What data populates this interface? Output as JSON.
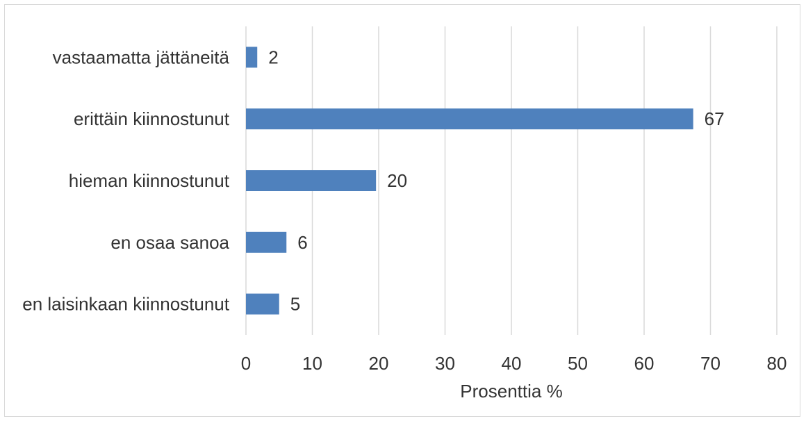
{
  "chart_data": {
    "type": "bar",
    "orientation": "horizontal",
    "categories": [
      "vastaamatta jättäneitä",
      "erittäin kiinnostunut",
      "hieman kiinnostunut",
      "en osaa sanoa",
      "en laisinkaan kiinnostunut"
    ],
    "values": [
      1.7,
      67.4,
      19.6,
      6.1,
      5.0
    ],
    "data_labels": [
      "2",
      "67",
      "20",
      "6",
      "5"
    ],
    "xlabel": "Prosenttia %",
    "ylabel": "",
    "xlim": [
      0,
      80
    ],
    "x_ticks": [
      "0",
      "10",
      "20",
      "30",
      "40",
      "50",
      "60",
      "70",
      "80"
    ],
    "grid": "vertical",
    "legend": "none",
    "bar_color": "#4f81bd",
    "gridline_color": "#d9d9d9",
    "text_color": "#333333"
  }
}
